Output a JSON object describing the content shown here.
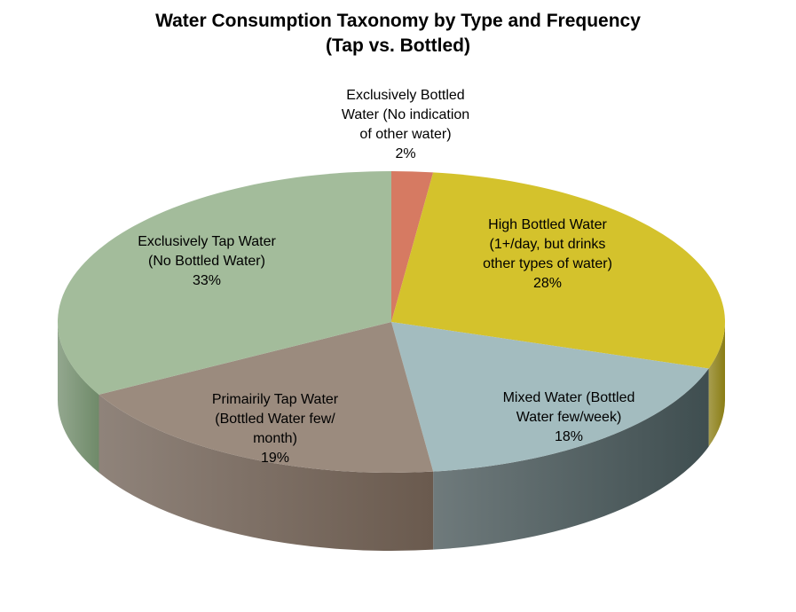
{
  "chart_data": {
    "type": "pie",
    "title": "Water Consumption Taxonomy by Type and Frequency",
    "subtitle": "(Tap vs. Bottled)",
    "slices": [
      {
        "label_lines": [
          "Exclusively Bottled",
          "Water (No indication",
          "of other water)",
          "2%"
        ],
        "value": 2,
        "color": "#d67a62",
        "side_color": "#8c4a3a"
      },
      {
        "label_lines": [
          "High Bottled Water",
          "(1+/day, but drinks",
          "other types of water)",
          "28%"
        ],
        "value": 28,
        "color": "#d4c22c",
        "side_color": "#8a7d14"
      },
      {
        "label_lines": [
          "Mixed Water (Bottled",
          "Water few/week)",
          "18%"
        ],
        "value": 18,
        "color": "#a3bcbf",
        "side_color": "#3f4e50"
      },
      {
        "label_lines": [
          "Primairily Tap Water",
          "(Bottled Water few/",
          "month)",
          "19%"
        ],
        "value": 19,
        "color": "#9b8b7e",
        "side_color": "#6a5a4e"
      },
      {
        "label_lines": [
          "Exclusively Tap Water",
          "(No Bottled Water)",
          "33%"
        ],
        "value": 33,
        "color": "#a3bc9b",
        "side_color": "#6f8a69"
      }
    ]
  }
}
